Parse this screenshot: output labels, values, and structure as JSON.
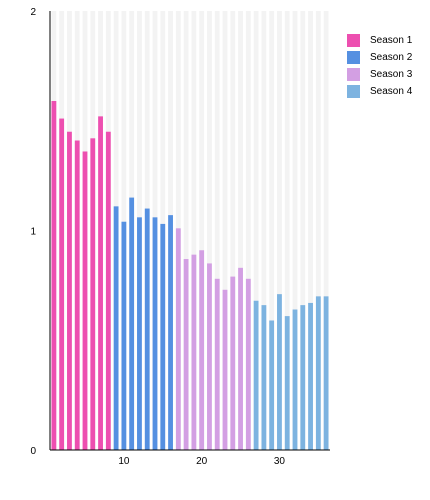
{
  "chart_data": {
    "type": "bar",
    "title": "",
    "xlabel": "",
    "ylabel": "",
    "xlim": [
      1,
      36
    ],
    "ylim": [
      0,
      2
    ],
    "x_ticks": [
      "10",
      "20",
      "30"
    ],
    "y_ticks": [
      "0",
      "1",
      "2"
    ],
    "grid": true,
    "legend_position": "right",
    "series": [
      {
        "name": "Season 1",
        "color": "#ed4fb0",
        "x": [
          1,
          2,
          3,
          4,
          5,
          6,
          7,
          8
        ],
        "values": [
          1.59,
          1.51,
          1.45,
          1.41,
          1.36,
          1.42,
          1.52,
          1.45
        ]
      },
      {
        "name": "Season 2",
        "color": "#5590e1",
        "x": [
          9,
          10,
          11,
          12,
          13,
          14,
          15,
          16
        ],
        "values": [
          1.11,
          1.04,
          1.15,
          1.06,
          1.1,
          1.06,
          1.03,
          1.07
        ]
      },
      {
        "name": "Season 3",
        "color": "#d39fe3",
        "x": [
          17,
          18,
          19,
          20,
          21,
          22,
          23,
          24,
          25,
          26
        ],
        "values": [
          1.01,
          0.87,
          0.89,
          0.91,
          0.85,
          0.78,
          0.73,
          0.79,
          0.83,
          0.78
        ]
      },
      {
        "name": "Season 4",
        "color": "#7db3e0",
        "x": [
          27,
          28,
          29,
          30,
          31,
          32,
          33,
          34,
          35,
          36
        ],
        "values": [
          0.68,
          0.66,
          0.59,
          0.71,
          0.61,
          0.64,
          0.66,
          0.67,
          0.7,
          0.7
        ]
      }
    ]
  }
}
